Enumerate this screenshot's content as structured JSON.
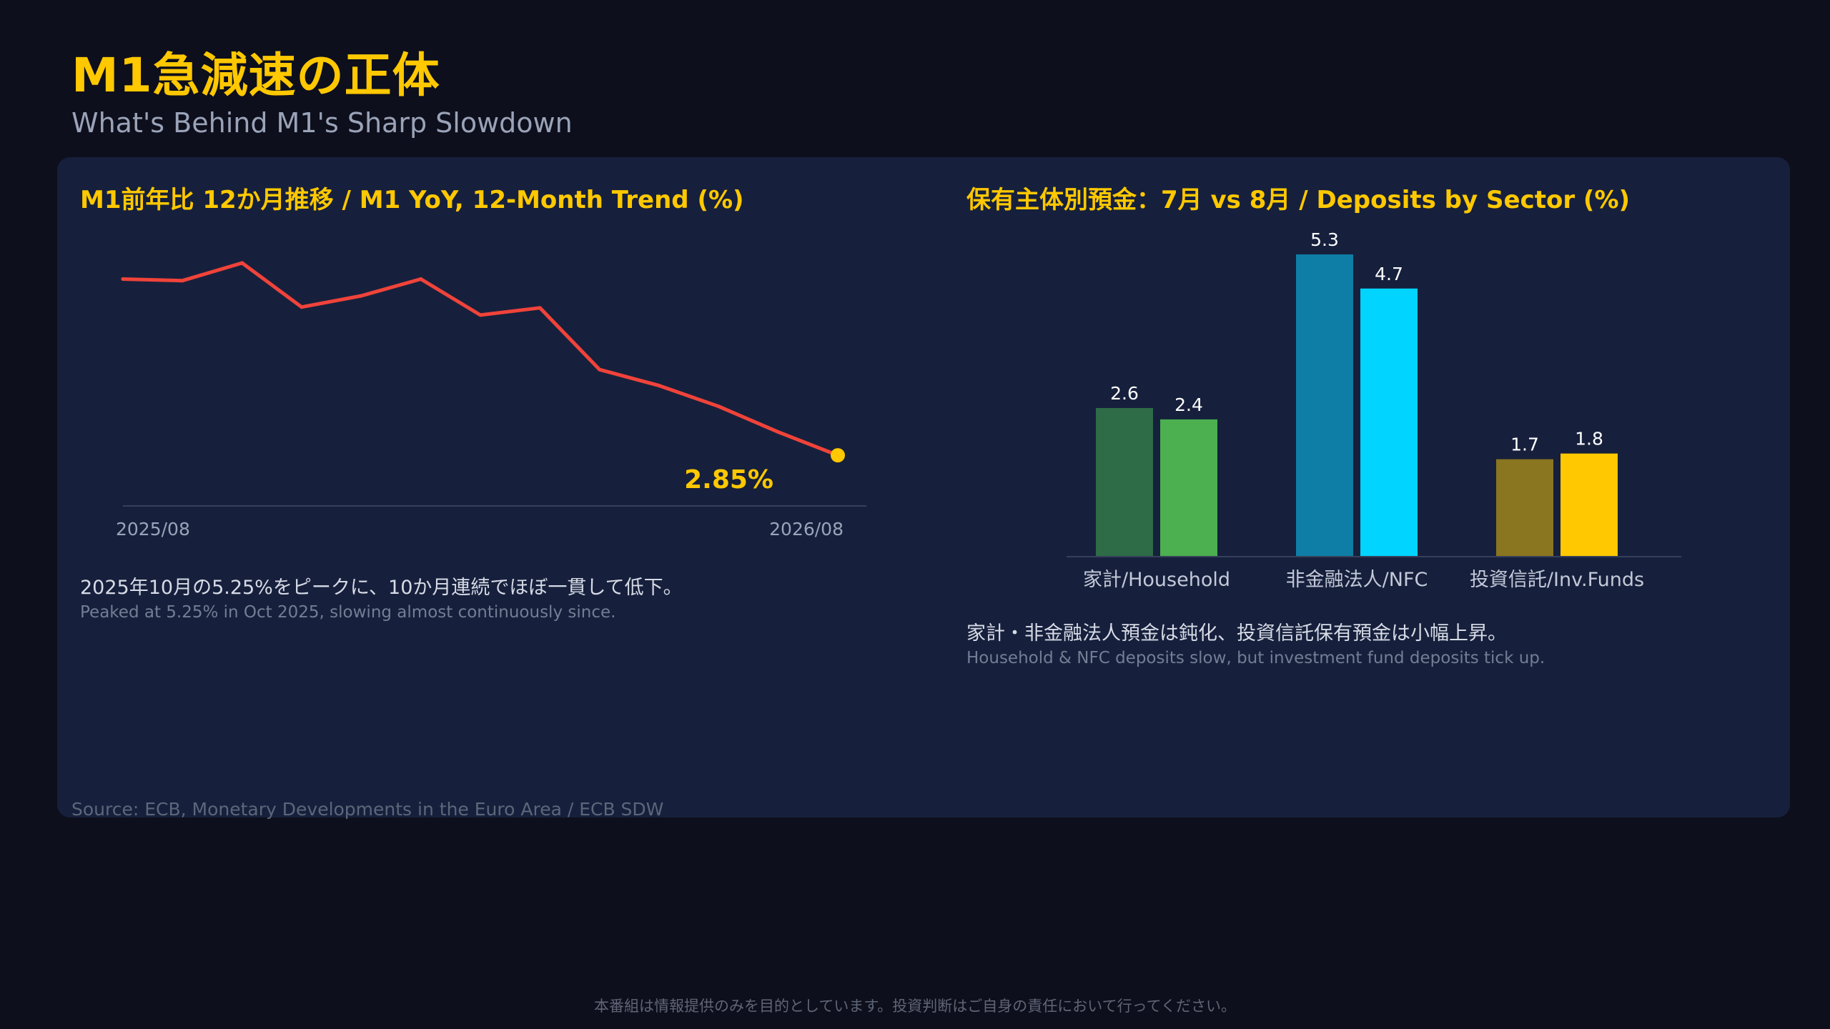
{
  "header": {
    "title": "M1急減速の正体",
    "subtitle": "What's Behind M1's Sharp Slowdown"
  },
  "left_panel": {
    "title": "M1前年比 12か月推移 / M1 YoY, 12-Month Trend (%)",
    "note_ja": "2025年10月の5.25%をピークに、10か月連続でほぼ一貫して低下。",
    "note_en": "Peaked at 5.25% in Oct 2025, slowing almost continuously since."
  },
  "right_panel": {
    "title": "保有主体別預金：7月 vs 8月 / Deposits by Sector (%)",
    "note_ja": "家計・非金融法人預金は鈍化、投資信託保有預金は小幅上昇。",
    "note_en": "Household & NFC deposits slow, but investment fund deposits tick up."
  },
  "source": "Source: ECB, Monetary Developments in the Euro Area / ECB SDW",
  "disclaimer": "本番組は情報提供のみを目的としています。投資判断はご自身の責任において行ってください。",
  "colors": {
    "accent": "#ffc800",
    "line": "#f0433a",
    "household_jul": "#2e6b47",
    "household_aug": "#4caf50",
    "nfc_jul": "#0e7ea6",
    "nfc_aug": "#00d4ff",
    "funds_jul": "#8a7520",
    "funds_aug": "#ffc800"
  },
  "chart_data": [
    {
      "type": "line",
      "x": [
        "2025/08",
        "2025/09",
        "2025/10",
        "2025/11",
        "2025/12",
        "2026/01",
        "2026/02",
        "2026/03",
        "2026/04",
        "2026/05",
        "2026/06",
        "2026/07",
        "2026/08"
      ],
      "values": [
        5.05,
        5.03,
        5.25,
        4.7,
        4.84,
        5.05,
        4.6,
        4.69,
        3.92,
        3.72,
        3.46,
        3.14,
        2.85
      ],
      "x_tick_labels": [
        "2025/08",
        "2026/08"
      ],
      "end_label": "2.85%",
      "ylim": [
        2.2,
        5.5
      ]
    },
    {
      "type": "bar",
      "categories": [
        "家計/Household",
        "非金融法人/NFC",
        "投資信託/Inv.Funds"
      ],
      "series": [
        {
          "values": [
            2.6,
            5.3,
            1.7
          ]
        },
        {
          "values": [
            2.4,
            4.7,
            1.8
          ]
        }
      ],
      "value_labels": [
        [
          "2.6",
          "5.3",
          "1.7"
        ],
        [
          "2.4",
          "4.7",
          "1.8"
        ]
      ],
      "ylim": [
        0,
        5.3
      ]
    }
  ]
}
